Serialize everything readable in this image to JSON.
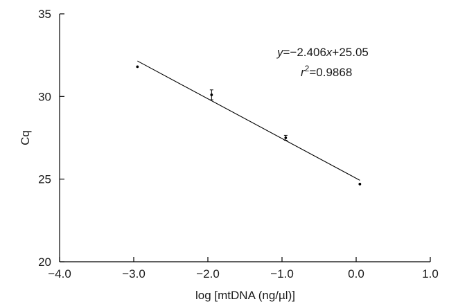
{
  "chart_data": {
    "type": "scatter",
    "title": "",
    "xlabel": "log [mtDNA (ng/µl)]",
    "ylabel": "Cq",
    "xlim": [
      -4.0,
      1.0
    ],
    "ylim": [
      20,
      35
    ],
    "x_ticks": [
      -4.0,
      -3.0,
      -2.0,
      -1.0,
      0.0,
      1.0
    ],
    "x_tick_labels": [
      "−4.0",
      "−3.0",
      "−2.0",
      "−1.0",
      "0.0",
      "1.0"
    ],
    "y_ticks": [
      20,
      25,
      30,
      35
    ],
    "y_tick_labels": [
      "20",
      "25",
      "30",
      "35"
    ],
    "grid": false,
    "series": [
      {
        "points": [
          {
            "x": -2.95,
            "y": 31.8,
            "err": 0.05
          },
          {
            "x": -1.95,
            "y": 30.1,
            "err": 0.3
          },
          {
            "x": -0.95,
            "y": 27.5,
            "err": 0.15
          },
          {
            "x": 0.05,
            "y": 24.7,
            "err": 0.05
          }
        ]
      }
    ],
    "fit": {
      "slope": -2.406,
      "intercept": 25.05,
      "x_range": [
        -2.95,
        0.05
      ]
    },
    "annotations": {
      "equation_y": "y",
      "equation_rest": "=−2.406",
      "equation_x": "x",
      "equation_tail": "+25.05",
      "r2_r": "r",
      "r2_sup": "2",
      "r2_rest": "=0.9868"
    }
  }
}
